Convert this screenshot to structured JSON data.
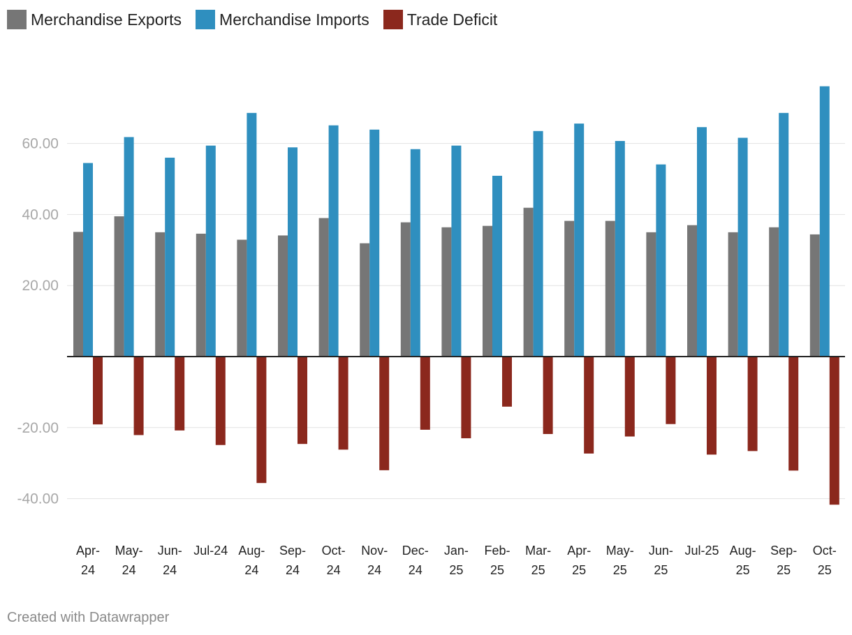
{
  "legend": {
    "items": [
      {
        "label": "Merchandise Exports",
        "color": "#767676"
      },
      {
        "label": "Merchandise Imports",
        "color": "#2f8fbf"
      },
      {
        "label": "Trade Deficit",
        "color": "#8b281d"
      }
    ]
  },
  "credit": "Created with Datawrapper",
  "chart_data": {
    "type": "bar",
    "title": "",
    "xlabel": "",
    "ylabel": "",
    "ylim": [
      -45,
      80
    ],
    "yticks": [
      -40,
      -20,
      20,
      40,
      60
    ],
    "ytick_labels": [
      "-40.00",
      "-20.00",
      "20.00",
      "40.00",
      "60.00"
    ],
    "grid": true,
    "legend_position": "top-left",
    "categories": [
      [
        "Apr-",
        "24"
      ],
      [
        "May-",
        "24"
      ],
      [
        "Jun-",
        "24"
      ],
      [
        "Jul-24"
      ],
      [
        "Aug-",
        "24"
      ],
      [
        "Sep-",
        "24"
      ],
      [
        "Oct-",
        "24"
      ],
      [
        "Nov-",
        "24"
      ],
      [
        "Dec-",
        "24"
      ],
      [
        "Jan-",
        "25"
      ],
      [
        "Feb-",
        "25"
      ],
      [
        "Mar-",
        "25"
      ],
      [
        "Apr-",
        "25"
      ],
      [
        "May-",
        "25"
      ],
      [
        "Jun-",
        "25"
      ],
      [
        "Jul-25"
      ],
      [
        "Aug-",
        "25"
      ],
      [
        "Sep-",
        "25"
      ],
      [
        "Oct-",
        "25"
      ]
    ],
    "series": [
      {
        "name": "Merchandise Exports",
        "color": "#767676",
        "values": [
          35.1,
          39.5,
          35.0,
          34.6,
          32.9,
          34.1,
          39.0,
          31.9,
          37.8,
          36.4,
          36.8,
          41.9,
          38.2,
          38.2,
          35.0,
          37.0,
          35.0,
          36.4,
          34.4
        ]
      },
      {
        "name": "Merchandise Imports",
        "color": "#2f8fbf",
        "values": [
          54.5,
          61.8,
          56.0,
          59.4,
          68.6,
          58.9,
          65.1,
          63.9,
          58.4,
          59.4,
          50.9,
          63.5,
          65.6,
          60.7,
          54.1,
          64.6,
          61.6,
          68.6,
          76.1
        ]
      },
      {
        "name": "Trade Deficit",
        "color": "#8b281d",
        "values": [
          -19.1,
          -22.1,
          -20.8,
          -24.9,
          -35.6,
          -24.6,
          -26.2,
          -32.0,
          -20.6,
          -23.0,
          -14.1,
          -21.8,
          -27.3,
          -22.5,
          -19.0,
          -27.6,
          -26.6,
          -32.1,
          -41.7
        ]
      }
    ]
  }
}
